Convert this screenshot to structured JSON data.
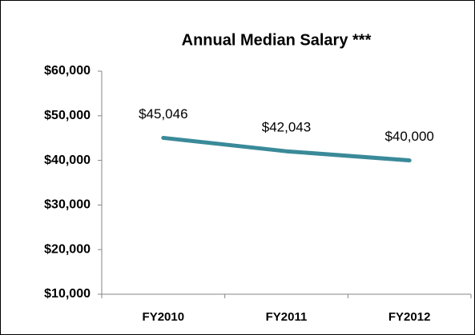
{
  "chart_data": {
    "type": "line",
    "title": "Annual Median Salary ***",
    "categories": [
      "FY2010",
      "FY2011",
      "FY2012"
    ],
    "series": [
      {
        "name": "Annual Median Salary",
        "color": "#3a8a99",
        "values": [
          45046,
          42043,
          40000
        ],
        "value_labels": [
          "$45,046",
          "$42,043",
          "$40,000"
        ]
      }
    ],
    "ylim": [
      10000,
      60000
    ],
    "yticks": [
      {
        "value": 10000,
        "label": "$10,000"
      },
      {
        "value": 20000,
        "label": "$20,000"
      },
      {
        "value": 30000,
        "label": "$30,000"
      },
      {
        "value": 40000,
        "label": "$40,000"
      },
      {
        "value": 50000,
        "label": "$50,000"
      },
      {
        "value": 60000,
        "label": "$60,000"
      }
    ],
    "grid": false
  }
}
